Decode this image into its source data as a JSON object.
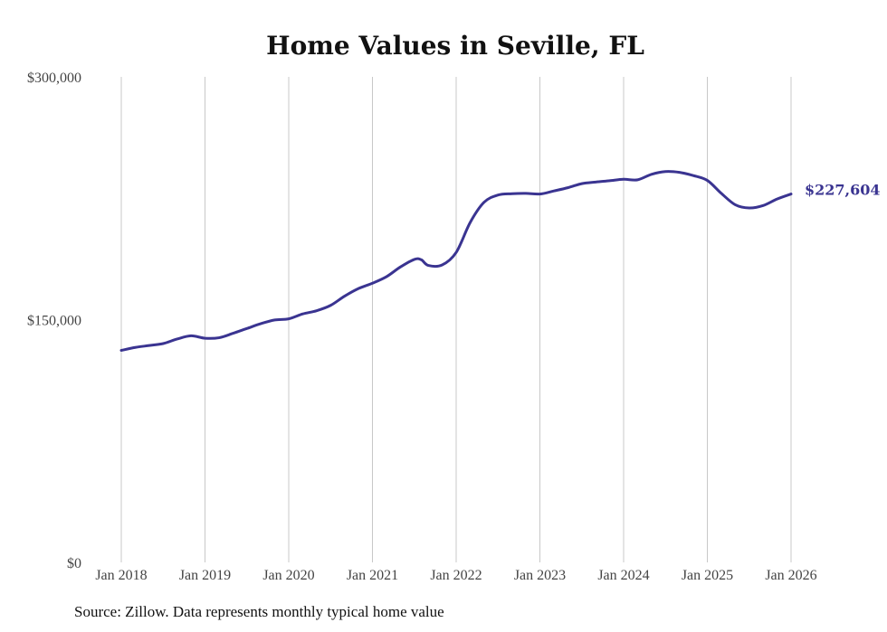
{
  "chart_data": {
    "type": "line",
    "title": "Home Values in Seville, FL",
    "xlabel": "",
    "ylabel": "",
    "ylim": [
      0,
      300000
    ],
    "y_ticks": [
      {
        "value": 0,
        "label": "$0"
      },
      {
        "value": 150000,
        "label": "$150,000"
      },
      {
        "value": 300000,
        "label": "$300,000"
      }
    ],
    "x_ticks": [
      {
        "value": 2018,
        "label": "Jan 2018"
      },
      {
        "value": 2019,
        "label": "Jan 2019"
      },
      {
        "value": 2020,
        "label": "Jan 2020"
      },
      {
        "value": 2021,
        "label": "Jan 2021"
      },
      {
        "value": 2022,
        "label": "Jan 2022"
      },
      {
        "value": 2023,
        "label": "Jan 2023"
      },
      {
        "value": 2024,
        "label": "Jan 2024"
      },
      {
        "value": 2025,
        "label": "Jan 2025"
      },
      {
        "value": 2026,
        "label": "Jan 2026"
      }
    ],
    "xlim": [
      2018,
      2026
    ],
    "grid": "vertical",
    "series": [
      {
        "name": "Typical home value",
        "color": "#3a3491",
        "end_label": "$227,604",
        "x": [
          2018.0,
          2018.167,
          2018.333,
          2018.5,
          2018.667,
          2018.833,
          2019.0,
          2019.167,
          2019.333,
          2019.5,
          2019.667,
          2019.833,
          2020.0,
          2020.167,
          2020.333,
          2020.5,
          2020.667,
          2020.833,
          2021.0,
          2021.167,
          2021.333,
          2021.5,
          2021.583,
          2021.667,
          2021.833,
          2022.0,
          2022.167,
          2022.333,
          2022.5,
          2022.667,
          2022.833,
          2023.0,
          2023.167,
          2023.333,
          2023.5,
          2023.667,
          2023.833,
          2024.0,
          2024.167,
          2024.333,
          2024.5,
          2024.667,
          2024.833,
          2025.0,
          2025.167,
          2025.333,
          2025.5,
          2025.667,
          2025.833,
          2026.0
        ],
        "y": [
          131000,
          132800,
          134000,
          135200,
          138000,
          140000,
          138500,
          138800,
          141500,
          144500,
          147500,
          149800,
          150500,
          153500,
          155500,
          158800,
          164500,
          169200,
          172500,
          176500,
          182500,
          187200,
          187000,
          183500,
          183800,
          191500,
          210000,
          222500,
          227000,
          227800,
          228000,
          227600,
          229500,
          231500,
          234000,
          235000,
          235800,
          236700,
          236400,
          239800,
          241500,
          241000,
          239000,
          236000,
          228000,
          221000,
          219000,
          220500,
          224500,
          227604
        ]
      }
    ]
  },
  "footer": {
    "source": "Source: Zillow. Data represents monthly typical home value"
  }
}
